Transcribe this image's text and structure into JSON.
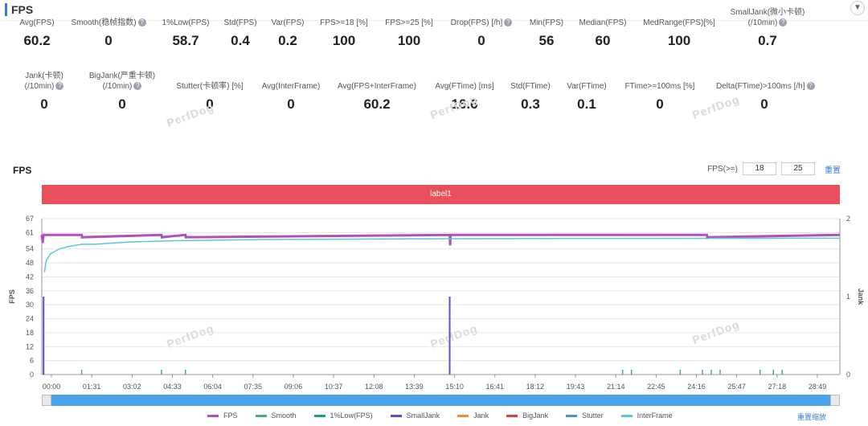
{
  "header": {
    "title": "FPS",
    "collapse_icon": "chevron-down-icon"
  },
  "metrics_row1": [
    {
      "label": "Avg(FPS)",
      "value": "60.2",
      "help": false
    },
    {
      "label": "Smooth(稳帧指数)",
      "value": "0",
      "help": true
    },
    {
      "label": "1%Low(FPS)",
      "value": "58.7",
      "help": false
    },
    {
      "label": "Std(FPS)",
      "value": "0.4",
      "help": false
    },
    {
      "label": "Var(FPS)",
      "value": "0.2",
      "help": false
    },
    {
      "label": "FPS>=18 [%]",
      "value": "100",
      "help": false
    },
    {
      "label": "FPS>=25 [%]",
      "value": "100",
      "help": false
    },
    {
      "label": "Drop(FPS) [/h]",
      "value": "0",
      "help": true
    },
    {
      "label": "Min(FPS)",
      "value": "56",
      "help": false
    },
    {
      "label": "Median(FPS)",
      "value": "60",
      "help": false
    },
    {
      "label": "MedRange(FPS)[%]",
      "value": "100",
      "help": false
    },
    {
      "label": "SmallJank(微小卡顿)",
      "label2": "(/10min)",
      "value": "0.7",
      "help": true
    }
  ],
  "metrics_row2": [
    {
      "label": "Jank(卡顿)",
      "label2": "(/10min)",
      "value": "0",
      "help": true
    },
    {
      "label": "BigJank(严重卡顿)",
      "label2": "(/10min)",
      "value": "0",
      "help": true
    },
    {
      "label": "Stutter(卡顿率) [%]",
      "value": "0",
      "help": false
    },
    {
      "label": "Avg(InterFrame)",
      "value": "0",
      "help": false
    },
    {
      "label": "Avg(FPS+InterFrame)",
      "value": "60.2",
      "help": false
    },
    {
      "label": "Avg(FTime) [ms]",
      "value": "16.6",
      "help": false
    },
    {
      "label": "Std(FTime)",
      "value": "0.3",
      "help": false
    },
    {
      "label": "Var(FTime)",
      "value": "0.1",
      "help": false
    },
    {
      "label": "FTime>=100ms [%]",
      "value": "0",
      "help": false
    },
    {
      "label": "Delta(FTime)>100ms [/h]",
      "value": "0",
      "help": true
    }
  ],
  "watermark": "PerfDog",
  "chart_panel": {
    "heading": "FPS",
    "filter_label": "FPS(>=)",
    "filter_values": [
      "18",
      "25"
    ],
    "reset_label": "重置",
    "segment_label": "label1",
    "reset_zoom_label": "重置缩放"
  },
  "colors": {
    "fps": "#b04fc4",
    "smooth": "#3cb371",
    "low1": "#1a9c8c",
    "smalljank": "#5a4fcf",
    "jank": "#f08c3a",
    "bigjank": "#d94040",
    "stutter": "#4a8fd9",
    "interframe": "#5bc8d6",
    "segment": "#e8505b"
  },
  "chart_data": {
    "type": "line",
    "title": "",
    "ylabel": "FPS",
    "y2label": "Jank",
    "ylim": [
      0,
      67
    ],
    "y2lim": [
      0,
      2
    ],
    "yticks": [
      0,
      6,
      12,
      18,
      24,
      30,
      36,
      42,
      48,
      54,
      61,
      67
    ],
    "y2ticks": [
      0,
      1,
      2
    ],
    "xlim": [
      0,
      1800
    ],
    "xticks": [
      "00:00",
      "01:31",
      "03:02",
      "04:33",
      "06:04",
      "07:35",
      "09:06",
      "10:37",
      "12:08",
      "13:39",
      "15:10",
      "16:41",
      "18:12",
      "19:43",
      "21:14",
      "22:45",
      "24:16",
      "25:47",
      "27:18",
      "28:49"
    ],
    "grid": "horizontal",
    "legend_position": "bottom",
    "series": [
      {
        "name": "FPS",
        "key": "fps",
        "axis": "left",
        "x": [
          0,
          2,
          4,
          90,
          91,
          270,
          271,
          324,
          325,
          920,
          921,
          922,
          1500,
          1501,
          1800
        ],
        "values": [
          60,
          57,
          60,
          60,
          59,
          60,
          59,
          60,
          59,
          60,
          56,
          60,
          60,
          59,
          60
        ]
      },
      {
        "name": "Smooth",
        "key": "smooth",
        "axis": "y2",
        "x": [],
        "values": []
      },
      {
        "name": "1%Low(FPS)",
        "key": "low1",
        "axis": "left",
        "x": [],
        "values": []
      },
      {
        "name": "SmallJank",
        "key": "smalljank",
        "axis": "y2",
        "x": [
          4,
          920
        ],
        "values": [
          1,
          1
        ]
      },
      {
        "name": "Jank",
        "key": "jank",
        "axis": "y2",
        "x": [],
        "values": []
      },
      {
        "name": "BigJank",
        "key": "bigjank",
        "axis": "y2",
        "x": [],
        "values": []
      },
      {
        "name": "Stutter",
        "key": "stutter",
        "axis": "left",
        "x": [],
        "values": []
      },
      {
        "name": "InterFrame",
        "key": "interframe",
        "axis": "left",
        "x": [
          6,
          10,
          20,
          40,
          60,
          90,
          120,
          200,
          300,
          500,
          800,
          1200,
          1800
        ],
        "values": [
          44,
          49,
          52,
          54,
          55,
          56,
          56,
          57,
          57.5,
          58,
          58.3,
          58.5,
          58.6
        ]
      }
    ],
    "smooth_markers_x": [
      90,
      270,
      324,
      1310,
      1330,
      1440,
      1490,
      1510,
      1530,
      1620,
      1650,
      1670
    ]
  }
}
